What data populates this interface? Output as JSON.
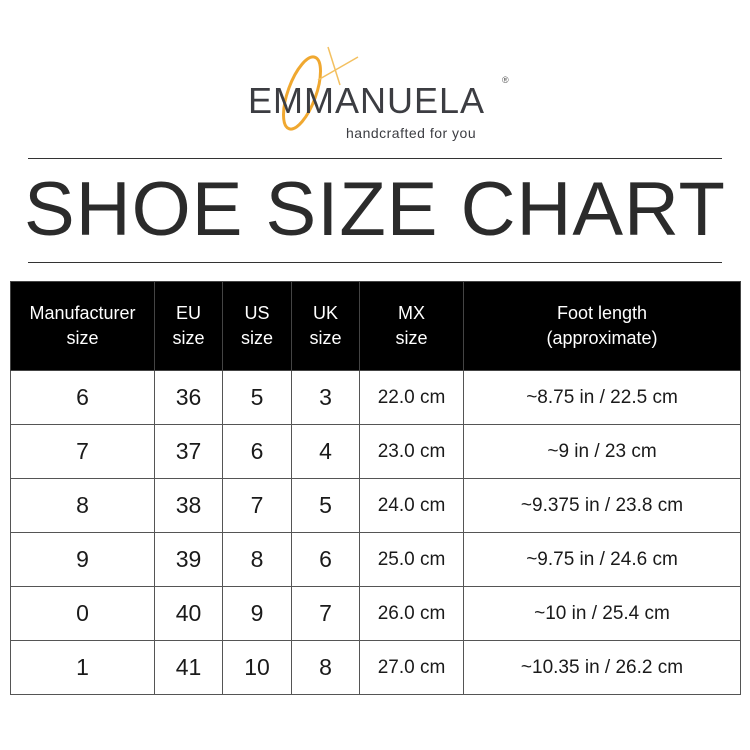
{
  "logo": {
    "brand": "EMMANUELA",
    "registered": "®",
    "tagline": "handcrafted for you",
    "accent_color": "#f0a830"
  },
  "title": "SHOE SIZE CHART",
  "table": {
    "headers": [
      [
        "Manufacturer",
        "size"
      ],
      [
        "EU",
        "size"
      ],
      [
        "US",
        "size"
      ],
      [
        "UK",
        "size"
      ],
      [
        "MX",
        "size"
      ],
      [
        "Foot length",
        "(approximate)"
      ]
    ],
    "rows": [
      [
        "6",
        "36",
        "5",
        "3",
        "22.0 cm",
        "~8.75 in / 22.5 cm"
      ],
      [
        "7",
        "37",
        "6",
        "4",
        "23.0 cm",
        "~9 in / 23 cm"
      ],
      [
        "8",
        "38",
        "7",
        "5",
        "24.0 cm",
        "~9.375 in / 23.8 cm"
      ],
      [
        "9",
        "39",
        "8",
        "6",
        "25.0 cm",
        "~9.75 in / 24.6 cm"
      ],
      [
        "0",
        "40",
        "9",
        "7",
        "26.0 cm",
        "~10 in / 25.4 cm"
      ],
      [
        "1",
        "41",
        "10",
        "8",
        "27.0 cm",
        "~10.35 in / 26.2 cm"
      ]
    ]
  }
}
